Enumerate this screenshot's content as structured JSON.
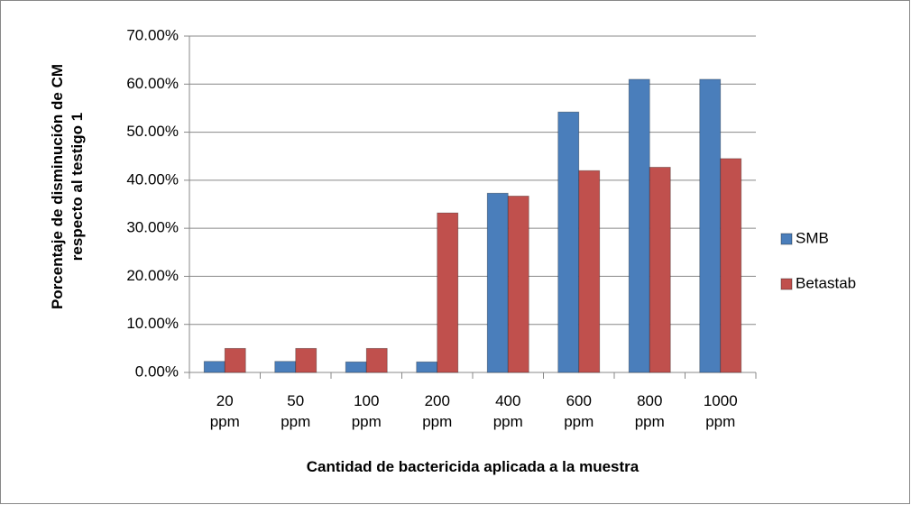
{
  "chart_data": {
    "type": "bar",
    "x_label": "Cantidad de bactericida aplicada a la muestra",
    "y_label": "Porcentaje de disminución de CM respecto al testigo 1",
    "categories": [
      "20 ppm",
      "50 ppm",
      "100 ppm",
      "200 ppm",
      "400 ppm",
      "600 ppm",
      "800 ppm",
      "1000 ppm"
    ],
    "series": [
      {
        "name": "SMB",
        "color": "#4a7ebb",
        "values": [
          2.3,
          2.3,
          2.2,
          2.2,
          37.3,
          54.2,
          61,
          61
        ]
      },
      {
        "name": "Betastab",
        "color": "#c0504d",
        "values": [
          5,
          5,
          5,
          33.2,
          36.7,
          42,
          42.7,
          44.5
        ]
      }
    ],
    "ylim": [
      0,
      70
    ],
    "yticks": [
      {
        "value": 0,
        "label": "0.00%"
      },
      {
        "value": 10,
        "label": "10.00%"
      },
      {
        "value": 20,
        "label": "20.00%"
      },
      {
        "value": 30,
        "label": "30.00%"
      },
      {
        "value": 40,
        "label": "40.00%"
      },
      {
        "value": 50,
        "label": "50.00%"
      },
      {
        "value": 60,
        "label": "60.00%"
      },
      {
        "value": 70,
        "label": "70.00%"
      }
    ],
    "grid": true,
    "legend": "right"
  }
}
